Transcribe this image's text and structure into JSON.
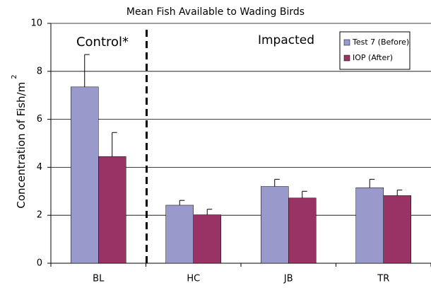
{
  "chart_data": {
    "type": "bar",
    "title": "Mean Fish Available to Wading Birds",
    "y_label": "Concentration of Fish/m",
    "y_label_superscript": "2",
    "annotations": [
      "Control*",
      "Impacted"
    ],
    "categories": [
      "BL",
      "HC",
      "JB",
      "TR"
    ],
    "series": [
      {
        "name": "Test 7 (Before)",
        "color": "#9999cc",
        "values": [
          7.35,
          2.42,
          3.2,
          3.15
        ],
        "errors": [
          1.35,
          0.2,
          0.3,
          0.35
        ]
      },
      {
        "name": "IOP (After)",
        "color": "#993366",
        "values": [
          4.45,
          2.02,
          2.72,
          2.82
        ],
        "errors": [
          1.0,
          0.23,
          0.28,
          0.23
        ]
      }
    ],
    "ylim": [
      0,
      10
    ],
    "yticks": [
      0,
      2,
      4,
      6,
      8,
      10
    ],
    "grid": true,
    "legend": "top-right"
  }
}
